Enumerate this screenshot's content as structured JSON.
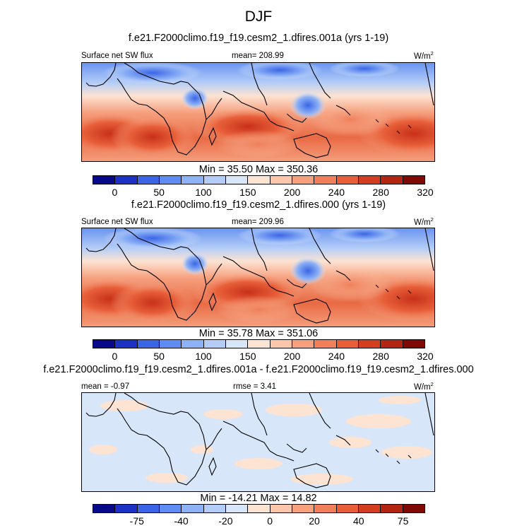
{
  "title": "DJF",
  "palette": [
    "#08088a",
    "#1c32c4",
    "#3a66e6",
    "#5e8cf2",
    "#8eb2f6",
    "#b4cdf8",
    "#d8e6fa",
    "#fde3d2",
    "#fbc6aa",
    "#f6a07e",
    "#f07f5a",
    "#e85e38",
    "#d43e20",
    "#b22510",
    "#7f0a05"
  ],
  "map_colors": {
    "coast": "#000000",
    "outline": "#000000"
  },
  "panels": [
    {
      "case_title": "f.e21.F2000climo.f19_f19.cesm2_1.dfires.001a (yrs 1-19)",
      "left_label": "Surface net SW flux",
      "center_label": "mean= 208.99",
      "units_base": "W/m",
      "units_exp": "2",
      "stats": "Min =  35.50 Max = 350.36",
      "ticks": [
        "0",
        "50",
        "100",
        "150",
        "200",
        "240",
        "280",
        "320"
      ]
    },
    {
      "case_title": "f.e21.F2000climo.f19_f19.cesm2_1.dfires.000 (yrs 1-19)",
      "left_label": "Surface net SW flux",
      "center_label": "mean= 209.96",
      "units_base": "W/m",
      "units_exp": "2",
      "stats": "Min =  35.78 Max = 351.06",
      "ticks": [
        "0",
        "50",
        "100",
        "150",
        "200",
        "240",
        "280",
        "320"
      ]
    },
    {
      "case_title": "f.e21.F2000climo.f19_f19.cesm2_1.dfires.001a - f.e21.F2000climo.f19_f19.cesm2_1.dfires.000",
      "left_label": "mean =  -0.97",
      "center_label": "rmse =  3.41",
      "units_base": "W/m",
      "units_exp": "2",
      "stats": "Min = -14.21 Max =  14.82",
      "ticks": [
        "-75",
        "-40",
        "-20",
        "0",
        "20",
        "40",
        "75"
      ]
    }
  ]
}
